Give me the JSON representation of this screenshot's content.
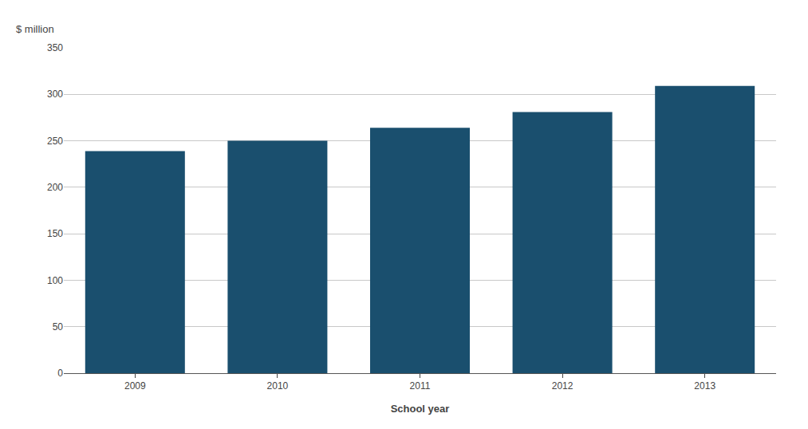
{
  "chart_data": {
    "type": "bar",
    "categories": [
      "2009",
      "2010",
      "2011",
      "2012",
      "2013"
    ],
    "values": [
      239,
      250,
      264,
      281,
      309
    ],
    "color": "#1a4f6e",
    "xlabel": "School year",
    "ylabel": "$ million",
    "ylim": [
      0,
      350
    ],
    "yticks": [
      0,
      50,
      100,
      150,
      200,
      250,
      300,
      350
    ],
    "grid": true
  }
}
